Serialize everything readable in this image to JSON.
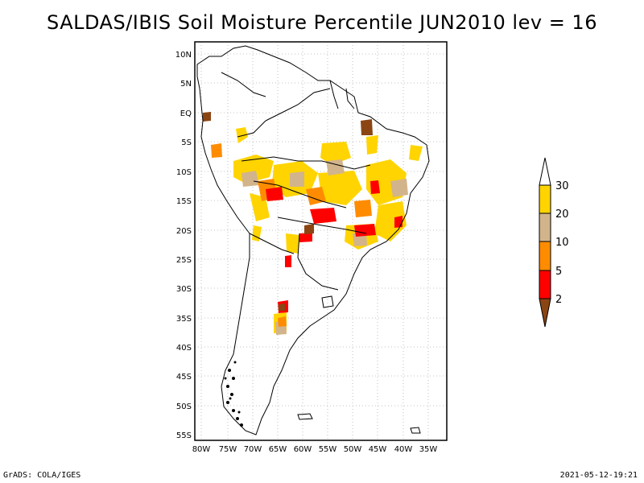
{
  "title": "SALDAS/IBIS Soil Moisture Percentile JUN2010 lev = 16",
  "footer": {
    "left": "GrADS: COLA/IGES",
    "right": "2021-05-12-19:21"
  },
  "map": {
    "lat_labels": [
      "10N",
      "5N",
      "EQ",
      "5S",
      "10S",
      "15S",
      "20S",
      "25S",
      "30S",
      "35S",
      "40S",
      "45S",
      "50S",
      "55S"
    ],
    "lon_labels": [
      "80W",
      "75W",
      "70W",
      "65W",
      "60W",
      "55W",
      "50W",
      "45W",
      "40W",
      "35W"
    ]
  },
  "legend": {
    "labels": [
      "30",
      "20",
      "10",
      "5",
      "2"
    ],
    "colors": {
      "above_30": "#ffffff",
      "20_30": "#ffd400",
      "10_20": "#d2b48c",
      "5_10": "#ff8c00",
      "2_5": "#ff0000",
      "below_2": "#8b4513"
    }
  }
}
